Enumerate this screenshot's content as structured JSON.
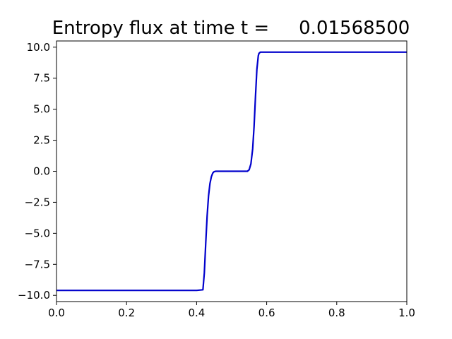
{
  "chart_data": {
    "type": "line",
    "title_prefix": "Entropy flux at time t =",
    "title_value": "0.01568500",
    "xlabel": "",
    "ylabel": "",
    "xlim": [
      0.0,
      1.0
    ],
    "ylim": [
      -10.5,
      10.5
    ],
    "grid": false,
    "x_ticks": [
      0.0,
      0.2,
      0.4,
      0.6,
      0.8,
      1.0
    ],
    "x_tick_labels": [
      "0.0",
      "0.2",
      "0.4",
      "0.6",
      "0.8",
      "1.0"
    ],
    "y_ticks": [
      10.0,
      7.5,
      5.0,
      2.5,
      0.0,
      -2.5,
      -5.0,
      -7.5,
      -10.0
    ],
    "y_tick_labels": [
      "10.0",
      "7.5",
      "5.0",
      "2.5",
      "0.0",
      "−2.5",
      "−5.0",
      "−7.5",
      "−10.0"
    ],
    "series": [
      {
        "color": "#0000cc",
        "x": [
          0.0,
          0.2,
          0.4,
          0.418,
          0.422,
          0.426,
          0.43,
          0.434,
          0.438,
          0.442,
          0.446,
          0.45,
          0.455,
          0.5,
          0.545,
          0.55,
          0.555,
          0.56,
          0.564,
          0.568,
          0.572,
          0.576,
          0.578,
          0.582,
          0.59,
          0.7,
          0.85,
          1.0
        ],
        "y": [
          -9.6,
          -9.6,
          -9.6,
          -9.55,
          -8.2,
          -5.8,
          -3.6,
          -2.0,
          -1.0,
          -0.45,
          -0.15,
          -0.03,
          0.0,
          0.0,
          0.0,
          0.12,
          0.6,
          1.8,
          3.6,
          6.0,
          8.2,
          9.3,
          9.5,
          9.6,
          9.6,
          9.6,
          9.6,
          9.6
        ]
      }
    ]
  }
}
